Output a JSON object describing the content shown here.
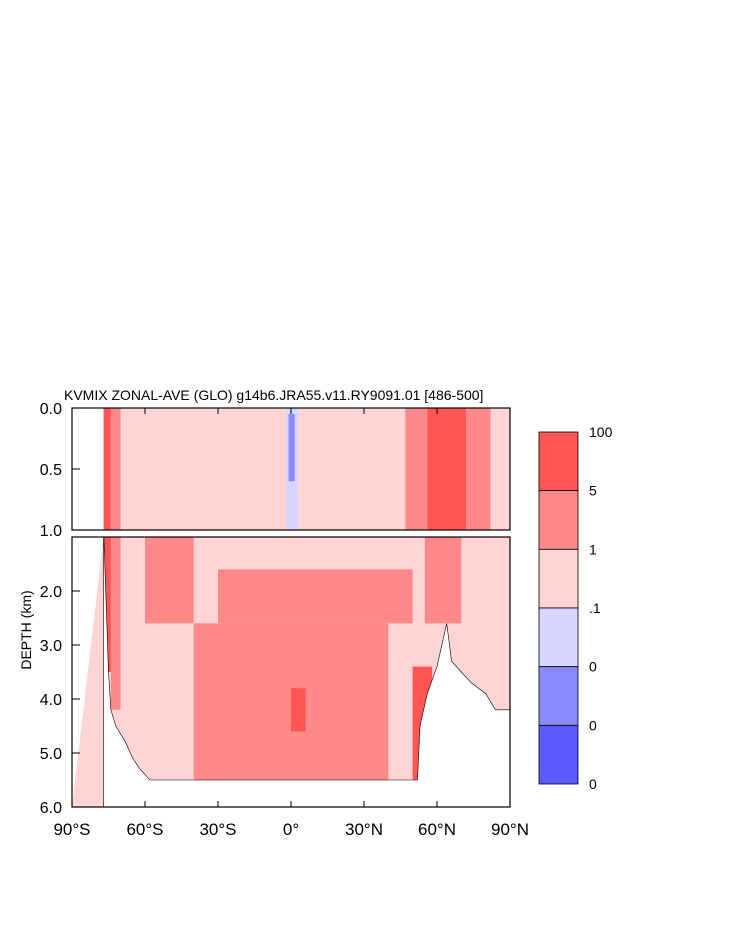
{
  "chart_data": {
    "type": "heatmap",
    "title": "KVMIX ZONAL-AVE (GLO) g14b6.JRA55.v11.RY9091.01 [486-500]",
    "xlabel": "",
    "ylabel": "DEPTH (km)",
    "x_ticks": [
      "90°S",
      "60°S",
      "30°S",
      "0°",
      "30°N",
      "60°N",
      "90°N"
    ],
    "x_tick_values": [
      -90,
      -60,
      -30,
      0,
      30,
      60,
      90
    ],
    "xlim": [
      -90,
      90
    ],
    "upper_panel": {
      "ylim": [
        0.0,
        1.0
      ],
      "y_ticks": [
        "0.0",
        "0.5",
        "1.0"
      ],
      "y_tick_values": [
        0.0,
        0.5,
        1.0
      ]
    },
    "lower_panel": {
      "ylim": [
        1.0,
        6.0
      ],
      "y_ticks": [
        "2.0",
        "3.0",
        "4.0",
        "5.0",
        "6.0"
      ],
      "y_tick_values": [
        2.0,
        3.0,
        4.0,
        5.0,
        6.0
      ]
    },
    "colorbar": {
      "labels": [
        "100",
        "5",
        "1",
        ".1",
        "0",
        "0",
        "0"
      ],
      "colors": [
        "#ff5555",
        "#ff8888",
        "#ffd4d4",
        "#d6d6fe",
        "#8a8afe",
        "#5a5afe"
      ]
    },
    "bands": [
      {
        "lat0": -77,
        "lat1": -74,
        "color": "#ff5555",
        "d0": 0.0,
        "d1": 3.5
      },
      {
        "lat0": -74,
        "lat1": -70,
        "color": "#ff8888",
        "d0": 0.0,
        "d1": 4.2
      },
      {
        "lat0": -70,
        "lat1": -60,
        "color": "#ffd4d4",
        "d0": 0.0,
        "d1": 5.1
      },
      {
        "lat0": -60,
        "lat1": -40,
        "color": "#ff8888",
        "d0": 1.0,
        "d1": 2.6
      },
      {
        "lat0": -40,
        "lat1": 40,
        "color": "#ff8888",
        "d0": 2.6,
        "d1": 5.5
      },
      {
        "lat0": -30,
        "lat1": 50,
        "color": "#ff8888",
        "d0": 1.6,
        "d1": 2.6
      },
      {
        "lat0": 0,
        "lat1": 6,
        "color": "#ff5555",
        "d0": 3.8,
        "d1": 4.6
      },
      {
        "lat0": 50,
        "lat1": 58,
        "color": "#ff5555",
        "d0": 3.4,
        "d1": 5.5
      },
      {
        "lat0": 56,
        "lat1": 72,
        "color": "#ff5555",
        "d0": 0.0,
        "d1": 1.0
      },
      {
        "lat0": 47,
        "lat1": 56,
        "color": "#ff8888",
        "d0": 0.0,
        "d1": 1.0
      },
      {
        "lat0": 72,
        "lat1": 82,
        "color": "#ff8888",
        "d0": 0.0,
        "d1": 1.0
      },
      {
        "lat0": 55,
        "lat1": 70,
        "color": "#ff8888",
        "d0": 1.0,
        "d1": 2.6
      },
      {
        "lat0": -2,
        "lat1": 3,
        "color": "#d6d6fe",
        "d0": 0.0,
        "d1": 1.0
      },
      {
        "lat0": -1,
        "lat1": 1.5,
        "color": "#8a8afe",
        "d0": 0.05,
        "d1": 0.6
      }
    ],
    "bathymetry": [
      [
        -90,
        6.0
      ],
      [
        -77,
        6.0
      ],
      [
        -77,
        0.85
      ],
      [
        -75,
        3.5
      ],
      [
        -74,
        4.2
      ],
      [
        -72,
        4.5
      ],
      [
        -68,
        4.8
      ],
      [
        -65,
        5.1
      ],
      [
        -62,
        5.3
      ],
      [
        -58,
        5.5
      ],
      [
        -50,
        5.5
      ],
      [
        -30,
        5.5
      ],
      [
        0,
        5.5
      ],
      [
        30,
        5.5
      ],
      [
        52,
        5.5
      ],
      [
        53,
        4.5
      ],
      [
        56,
        3.9
      ],
      [
        60,
        3.4
      ],
      [
        62,
        3.0
      ],
      [
        64,
        2.6
      ],
      [
        66,
        3.3
      ],
      [
        70,
        3.5
      ],
      [
        74,
        3.7
      ],
      [
        80,
        3.9
      ],
      [
        84,
        4.2
      ],
      [
        90,
        4.2
      ],
      [
        90,
        6.0
      ]
    ]
  }
}
